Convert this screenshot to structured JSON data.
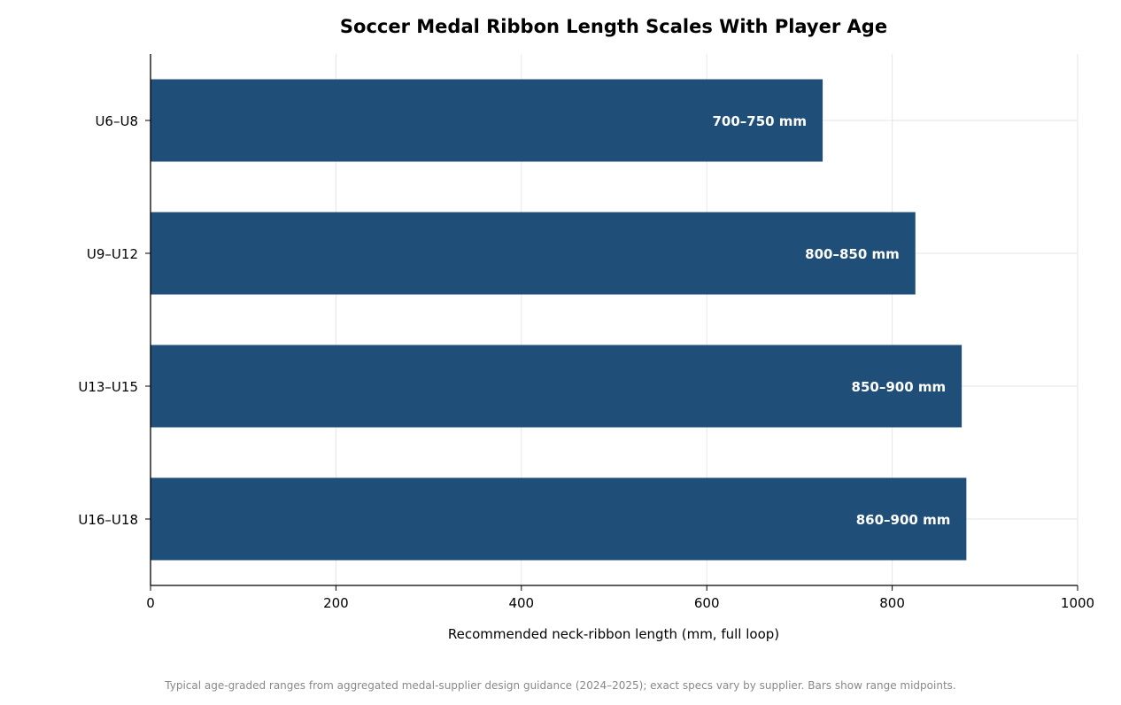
{
  "chart_data": {
    "type": "bar",
    "orientation": "horizontal",
    "title": "Soccer Medal Ribbon Length Scales With Player Age",
    "xlabel": "Recommended neck-ribbon length (mm, full loop)",
    "ylabel": "",
    "xlim": [
      0,
      1000
    ],
    "xticks": [
      0,
      200,
      400,
      600,
      800,
      1000
    ],
    "categories": [
      "U6–U8",
      "U9–U12",
      "U13–U15",
      "U16–U18"
    ],
    "values": [
      725,
      825,
      875,
      880
    ],
    "data_labels": [
      "700–750 mm",
      "800–850 mm",
      "850–900 mm",
      "860–900 mm"
    ],
    "grid": true,
    "bar_color": "#1f4e79",
    "footnote": "Typical age-graded ranges from aggregated medal-supplier design guidance (2024–2025); exact specs vary by supplier. Bars show range midpoints."
  }
}
